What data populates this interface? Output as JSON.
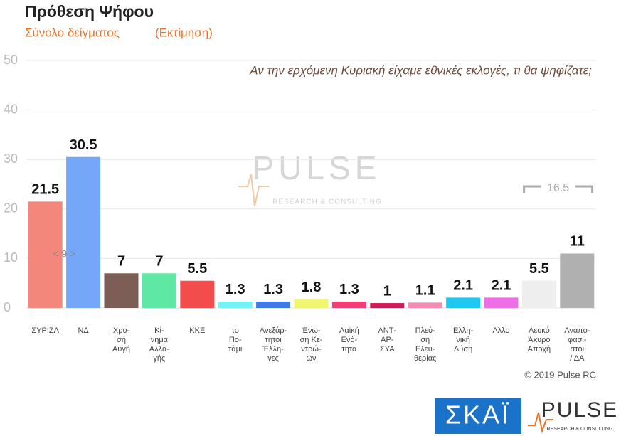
{
  "chart_data": {
    "type": "bar",
    "title": "Πρόθεση Ψήφου",
    "subtitle": "Σύνολο δείγματος",
    "subtitle_note": "(Εκτίμηση)",
    "question": "Αν την ερχόμενη Κυριακή είχαμε εθνικές εκλογές, τι θα ψηφίζατε;",
    "categories": [
      "ΣΥΡΙΖΑ",
      "ΝΔ",
      "Χρυ-\nσή\nΑυγή",
      "Κί-\nνημα\nΑλλα-\nγής",
      "ΚΚΕ",
      "το\nΠο-\nτάμι",
      "Ανεξάρ-\nτητοι\nΈλλη-\nνες",
      "Ένω-\nση Κε-\nντρώ-\nων",
      "Λαϊκή\nΕνό-\nτητα",
      "ΑΝΤ-\nΑΡ-\nΣΥΑ",
      "Πλεύ-\nση\nΕλευ-\nθερίας",
      "Ελλη-\nνική\nΛύση",
      "Αλλο",
      "Λευκό\nΆκυρο\nΑποχή",
      "Αναπο-\nφάσι-\nστοι\n/ ΔΑ"
    ],
    "values": [
      21.5,
      30.5,
      7,
      7,
      5.5,
      1.3,
      1.3,
      1.8,
      1.3,
      1,
      1.1,
      2.1,
      2.1,
      5.5,
      11
    ],
    "colors": [
      "#f4877b",
      "#74a7f7",
      "#7d5e56",
      "#5ee8a4",
      "#f24c4c",
      "#74f2f6",
      "#3e79e6",
      "#f2f56e",
      "#ef3f74",
      "#c81e55",
      "#f78bb4",
      "#1ec8ef",
      "#ee6ee8",
      "#eeeeee",
      "#b0b0b0"
    ],
    "ylim": [
      0,
      50
    ],
    "yticks": [
      0,
      10,
      20,
      30,
      40,
      50
    ],
    "grid": true,
    "annotations": [
      {
        "text": "< 9 >"
      },
      {
        "text": "16.5"
      }
    ],
    "watermark": {
      "brand": "PULSE",
      "tagline": "RESEARCH & CONSULTING"
    },
    "copyright": "© 2019 Pulse RC",
    "logos": {
      "channel": "ΣΚΑΪ",
      "brand": "PULSE",
      "tagline": "RESEARCH & CONSULTING"
    }
  }
}
